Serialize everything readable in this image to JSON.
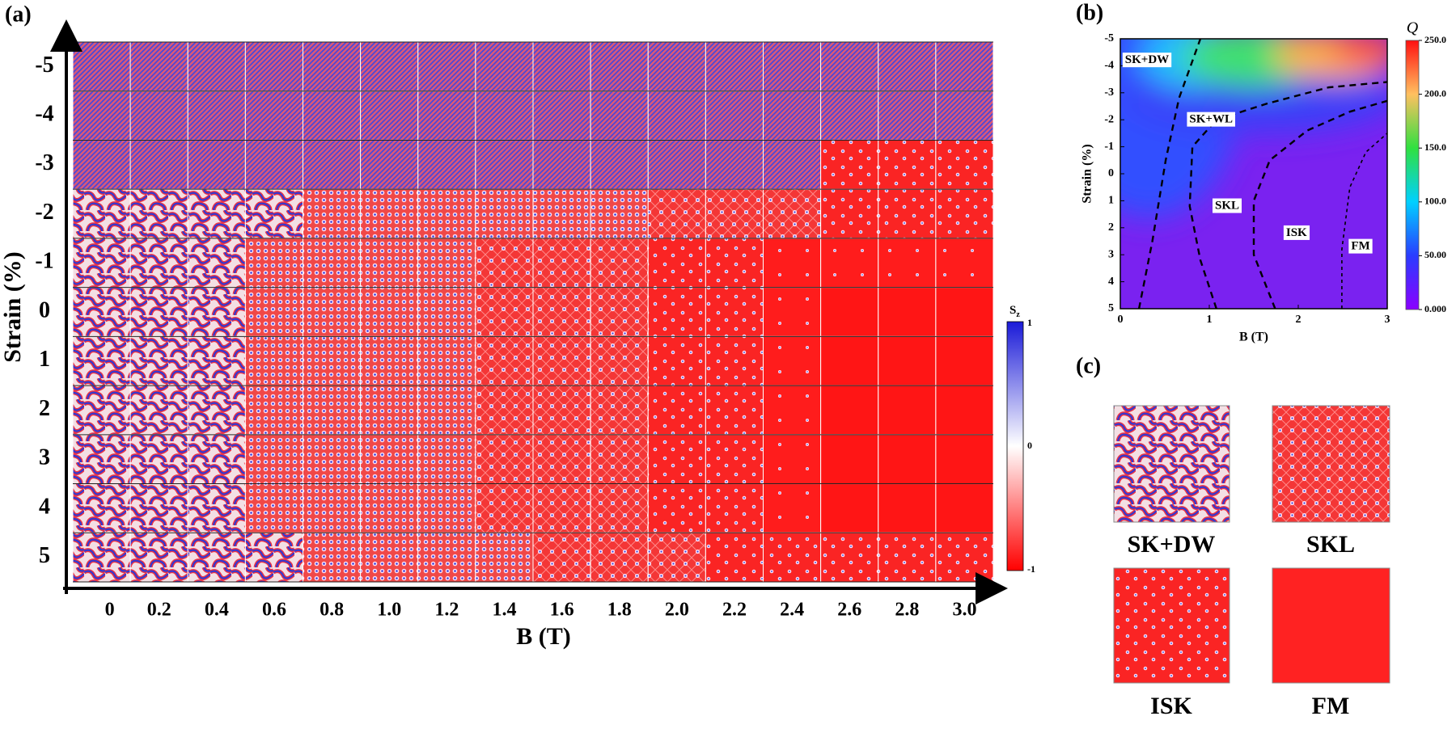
{
  "panel_a": {
    "label": "(a)",
    "x_label": "B (T)",
    "y_label": "Strain (%)",
    "x_ticks": [
      "0",
      "0.2",
      "0.4",
      "0.6",
      "0.8",
      "1.0",
      "1.2",
      "1.4",
      "1.6",
      "1.8",
      "2.0",
      "2.2",
      "2.4",
      "2.6",
      "2.8",
      "3.0"
    ],
    "y_ticks": [
      "-5",
      "-4",
      "-3",
      "-2",
      "-1",
      "0",
      "1",
      "2",
      "3",
      "4",
      "5"
    ],
    "colorbar": {
      "title": "S",
      "title_sub": "z",
      "ticks": [
        "1",
        "0",
        "-1"
      ]
    }
  },
  "panel_b": {
    "label": "(b)",
    "x_label": "B (T)",
    "y_label": "Strain (%)",
    "x_ticks": [
      "0",
      "1",
      "2",
      "3"
    ],
    "y_ticks": [
      "-5",
      "-4",
      "-3",
      "-2",
      "-1",
      "0",
      "1",
      "2",
      "3",
      "4",
      "5"
    ],
    "regions": [
      "SK+DW",
      "SK+WL",
      "SKL",
      "ISK",
      "FM"
    ],
    "colorbar": {
      "title": "Q",
      "ticks": [
        "250.0",
        "200.0",
        "150.0",
        "100.0",
        "50.00",
        "0.000"
      ]
    }
  },
  "panel_c": {
    "label": "(c)",
    "images": [
      "SK+DW",
      "SKL",
      "ISK",
      "FM"
    ]
  }
}
